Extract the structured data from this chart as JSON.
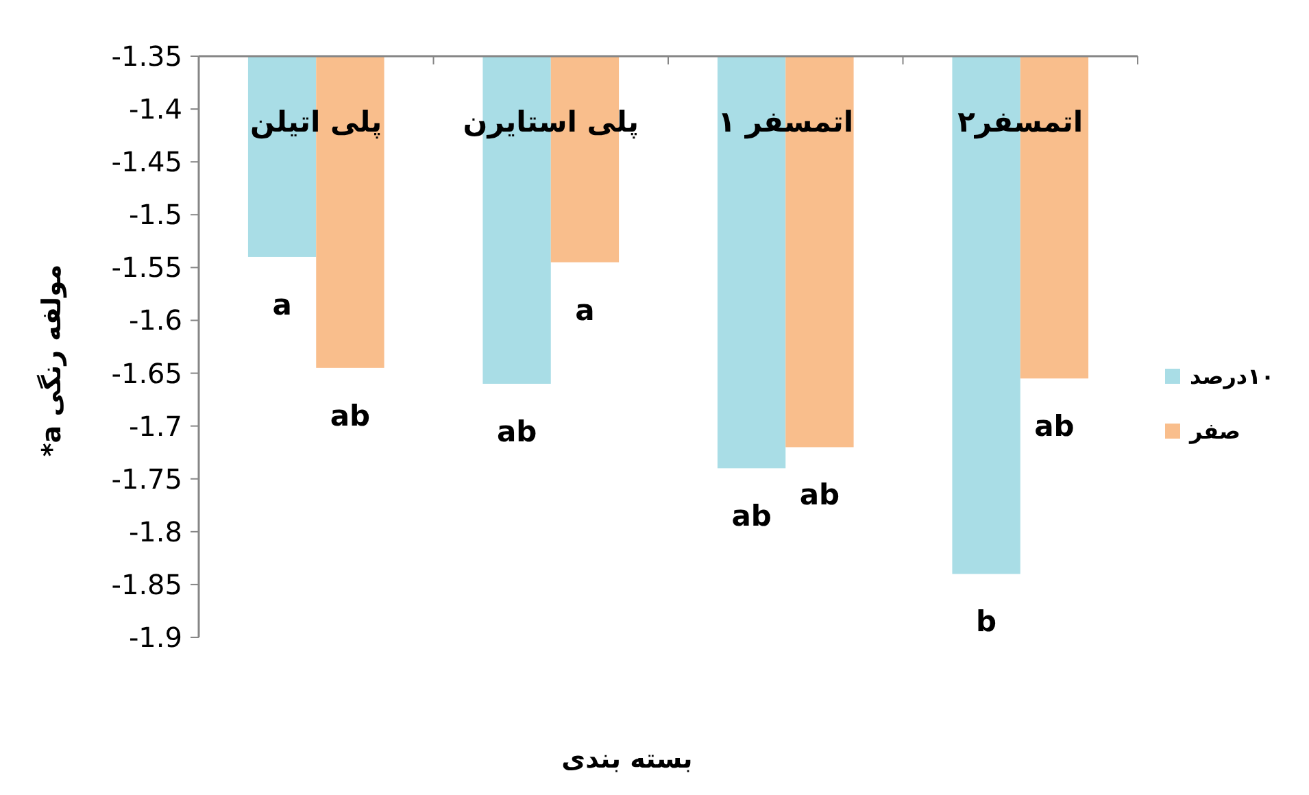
{
  "chart_data": {
    "type": "bar",
    "xlabel": "بسته بندی",
    "ylabel": "مولفه رنگی a*",
    "categories": [
      "پلی اتیلن",
      "پلی استایرن",
      "اتمسفر ۱",
      "اتمسفر۲"
    ],
    "series": [
      {
        "name": "۱۰درصد",
        "color": "#a9dde6",
        "values": [
          -1.54,
          -1.66,
          -1.74,
          -1.84
        ],
        "value_labels": [
          "a",
          "ab",
          "ab",
          "b"
        ]
      },
      {
        "name": "صفر",
        "color": "#f9be8c",
        "values": [
          -1.645,
          -1.545,
          -1.72,
          -1.655
        ],
        "value_labels": [
          "ab",
          "a",
          "ab",
          "ab"
        ]
      }
    ],
    "ylim": [
      -1.9,
      -1.35
    ],
    "yticks": [
      -1.35,
      -1.4,
      -1.45,
      -1.5,
      -1.55,
      -1.6,
      -1.65,
      -1.7,
      -1.75,
      -1.8,
      -1.85,
      -1.9
    ],
    "grid": false,
    "legend": "right"
  }
}
